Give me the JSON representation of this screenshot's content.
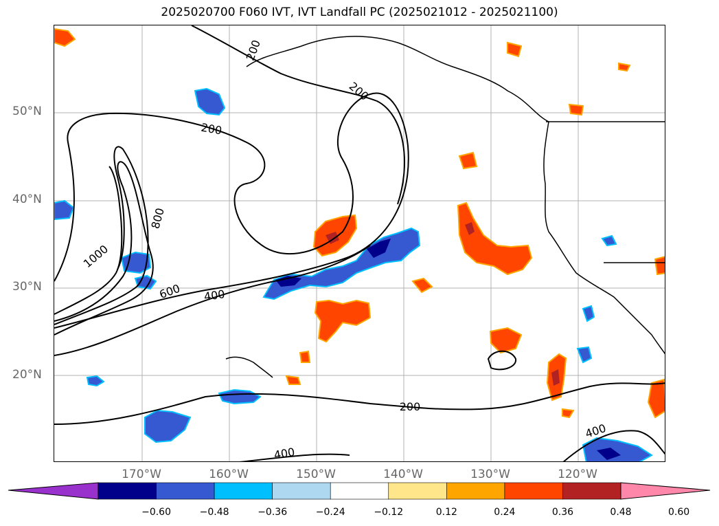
{
  "title": "2025020700 F060 IVT, IVT Landfall PC (2025021012 - 2025021100)",
  "axes": {
    "lat_labels": [
      "50°N",
      "40°N",
      "30°N",
      "20°N"
    ],
    "lon_labels": [
      "170°W",
      "160°W",
      "150°W",
      "140°W",
      "130°W",
      "120°W"
    ]
  },
  "contour_labels": [
    "200",
    "200",
    "200",
    "200",
    "400",
    "400",
    "400",
    "600",
    "800",
    "1000"
  ],
  "colorbar": {
    "ticks": [
      "−0.60",
      "−0.48",
      "−0.36",
      "−0.24",
      "−0.12",
      "0.12",
      "0.24",
      "0.36",
      "0.48",
      "0.60"
    ],
    "colors": [
      "#9932cc",
      "#00008b",
      "#3658d0",
      "#00bfff",
      "#add8f0",
      "#ffffff",
      "#ffe68a",
      "#ffa500",
      "#ff4500",
      "#b22222",
      "#ff88aa"
    ]
  }
}
